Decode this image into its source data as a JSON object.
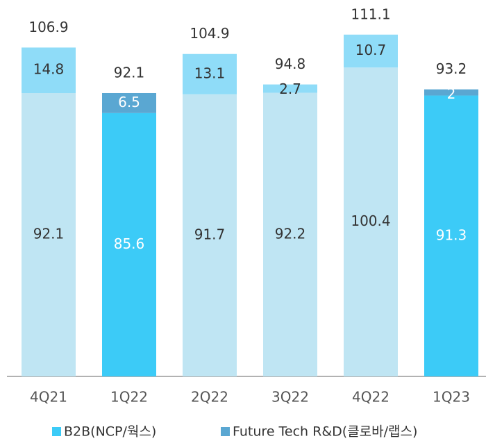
{
  "chart_data": {
    "type": "bar",
    "stacked": true,
    "categories": [
      "4Q21",
      "1Q22",
      "2Q22",
      "3Q22",
      "4Q22",
      "1Q23"
    ],
    "highlighted": [
      false,
      true,
      false,
      false,
      false,
      true
    ],
    "series": [
      {
        "name": "B2B(NCP/웍스)",
        "color": "#3ccbf7",
        "muted_color": "#bfe5f3",
        "values": [
          92.1,
          85.6,
          91.7,
          92.2,
          100.4,
          91.3
        ]
      },
      {
        "name": "Future Tech R&D(클로바/랩스)",
        "color": "#5aa7d2",
        "muted_color": "#8fdcf8",
        "values": [
          14.8,
          6.5,
          13.1,
          2.7,
          10.7,
          2.0
        ]
      }
    ],
    "totals": [
      106.9,
      92.1,
      104.9,
      94.8,
      111.1,
      93.2
    ]
  }
}
